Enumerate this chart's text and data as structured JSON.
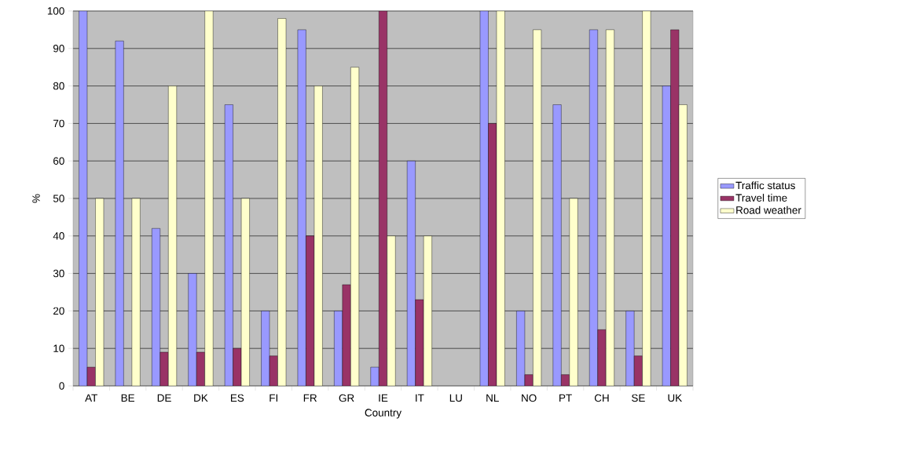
{
  "chart_data": {
    "type": "bar",
    "xlabel": "Country",
    "ylabel": "%",
    "categories": [
      "AT",
      "BE",
      "DE",
      "DK",
      "ES",
      "FI",
      "FR",
      "GR",
      "IE",
      "IT",
      "LU",
      "NL",
      "NO",
      "PT",
      "CH",
      "SE",
      "UK"
    ],
    "series": [
      {
        "name": "Traffic status",
        "color": "#9999ff",
        "values": [
          100,
          92,
          42,
          30,
          75,
          20,
          95,
          20,
          5,
          60,
          null,
          100,
          20,
          75,
          95,
          20,
          80
        ]
      },
      {
        "name": "Travel time",
        "color": "#993366",
        "values": [
          5,
          null,
          9,
          9,
          10,
          8,
          40,
          27,
          100,
          23,
          null,
          70,
          3,
          3,
          15,
          8,
          95
        ]
      },
      {
        "name": "Road weather",
        "color": "#ffffcc",
        "values": [
          50,
          50,
          80,
          100,
          50,
          98,
          80,
          85,
          40,
          40,
          null,
          100,
          95,
          50,
          95,
          100,
          75
        ]
      }
    ],
    "ylim": [
      0,
      100
    ],
    "yticks": [
      0,
      10,
      20,
      30,
      40,
      50,
      60,
      70,
      80,
      90,
      100
    ],
    "grid": "y",
    "legend": "right"
  }
}
